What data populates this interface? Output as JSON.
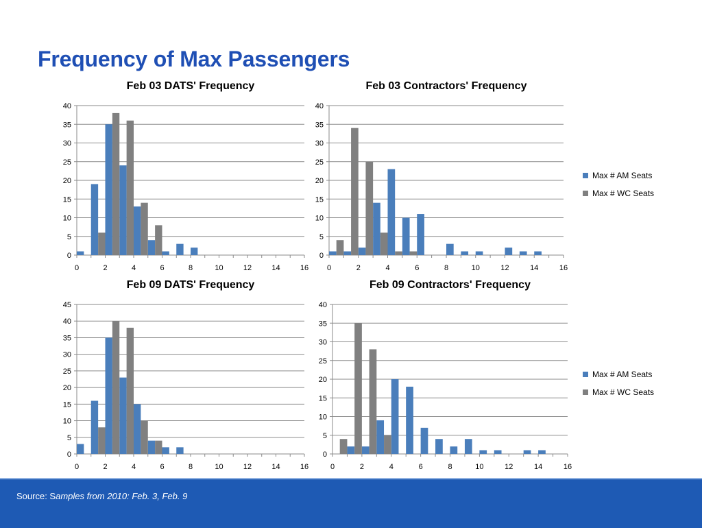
{
  "title": "Frequency of Max Passengers",
  "footer": {
    "prefix": "Source: S",
    "italic": "amples from 2010: Feb. 3, Feb. 9"
  },
  "colors": {
    "am": "#4a7ebb",
    "wc": "#808080",
    "title": "#1f4fb4",
    "footer": "#1e5ab4"
  },
  "chart_data": [
    {
      "id": "c1",
      "type": "bar",
      "title": "Feb 03 DATS' Frequency",
      "x": [
        1,
        2,
        3,
        4,
        5,
        6,
        7,
        8,
        9,
        10,
        11,
        12,
        13,
        14,
        15,
        16
      ],
      "xticks": [
        0,
        2,
        4,
        6,
        8,
        10,
        12,
        14,
        16
      ],
      "ylim": [
        0,
        40
      ],
      "yticks": [
        0,
        5,
        10,
        15,
        20,
        25,
        30,
        35,
        40
      ],
      "series": [
        {
          "name": "Max # AM Seats",
          "values": [
            1,
            19,
            35,
            24,
            13,
            4,
            1,
            3,
            2,
            0,
            0,
            0,
            0,
            0,
            0,
            0
          ]
        },
        {
          "name": "Max # WC Seats",
          "values": [
            0,
            6,
            38,
            36,
            14,
            8,
            0,
            0,
            0,
            0,
            0,
            0,
            0,
            0,
            0,
            0
          ]
        }
      ],
      "legend": false
    },
    {
      "id": "c2",
      "type": "bar",
      "title": "Feb 03 Contractors' Frequency",
      "x": [
        1,
        2,
        3,
        4,
        5,
        6,
        7,
        8,
        9,
        10,
        11,
        12,
        13,
        14,
        15,
        16
      ],
      "xticks": [
        0,
        2,
        4,
        6,
        8,
        10,
        12,
        14,
        16
      ],
      "ylim": [
        0,
        40
      ],
      "yticks": [
        0,
        5,
        10,
        15,
        20,
        25,
        30,
        35,
        40
      ],
      "series": [
        {
          "name": "Max # AM Seats",
          "values": [
            1,
            1,
            2,
            14,
            23,
            10,
            11,
            0,
            3,
            1,
            1,
            0,
            2,
            1,
            1,
            0
          ]
        },
        {
          "name": "Max # WC Seats",
          "values": [
            4,
            34,
            25,
            6,
            1,
            1,
            0,
            0,
            0,
            0,
            0,
            0,
            0,
            0,
            0,
            0
          ]
        }
      ],
      "legend": true
    },
    {
      "id": "c3",
      "type": "bar",
      "title": "Feb 09 DATS' Frequency",
      "x": [
        1,
        2,
        3,
        4,
        5,
        6,
        7,
        8,
        9,
        10,
        11,
        12,
        13,
        14,
        15,
        16
      ],
      "xticks": [
        0,
        2,
        4,
        6,
        8,
        10,
        12,
        14,
        16
      ],
      "ylim": [
        0,
        45
      ],
      "yticks": [
        0,
        5,
        10,
        15,
        20,
        25,
        30,
        35,
        40,
        45
      ],
      "series": [
        {
          "name": "Max # AM Seats",
          "values": [
            3,
            16,
            35,
            23,
            15,
            4,
            2,
            2,
            0,
            0,
            0,
            0,
            0,
            0,
            0,
            0
          ]
        },
        {
          "name": "Max # WC Seats",
          "values": [
            0,
            8,
            40,
            38,
            10,
            4,
            0,
            0,
            0,
            0,
            0,
            0,
            0,
            0,
            0,
            0
          ]
        }
      ],
      "legend": false
    },
    {
      "id": "c4",
      "type": "bar",
      "title": "Feb 09 Contractors' Frequency",
      "x": [
        1,
        2,
        3,
        4,
        5,
        6,
        7,
        8,
        9,
        10,
        11,
        12,
        13,
        14,
        15,
        16
      ],
      "xticks": [
        0,
        2,
        4,
        6,
        8,
        10,
        12,
        14,
        16
      ],
      "ylim": [
        0,
        40
      ],
      "yticks": [
        0,
        5,
        10,
        15,
        20,
        25,
        30,
        35,
        40
      ],
      "series": [
        {
          "name": "Max # AM Seats",
          "values": [
            0,
            2,
            2,
            9,
            20,
            18,
            7,
            4,
            2,
            4,
            1,
            1,
            0,
            1,
            1,
            0
          ]
        },
        {
          "name": "Max # WC Seats",
          "values": [
            4,
            35,
            28,
            5,
            0,
            0,
            0,
            0,
            0,
            0,
            0,
            0,
            0,
            0,
            0,
            0
          ]
        }
      ],
      "legend": true
    }
  ]
}
